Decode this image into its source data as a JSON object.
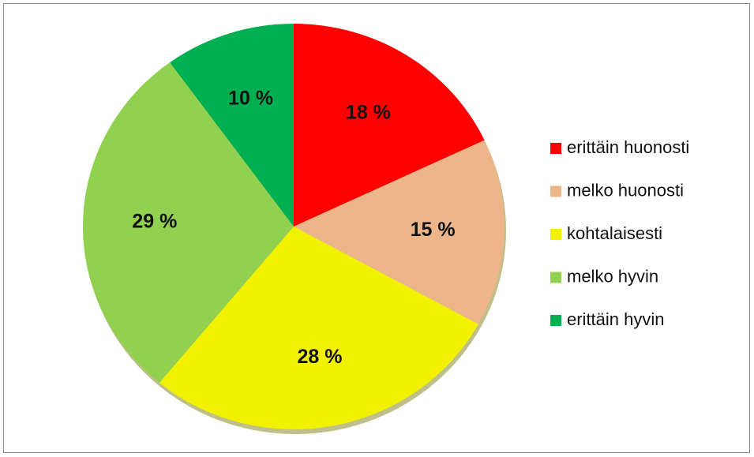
{
  "chart_data": {
    "type": "pie",
    "categories": [
      "erittäin huonosti",
      "melko huonosti",
      "kohtalaisesti",
      "melko hyvin",
      "erittäin hyvin"
    ],
    "values": [
      18,
      15,
      28,
      29,
      10
    ],
    "value_labels": [
      "18 %",
      "15 %",
      "28 %",
      "29 %",
      "10 %"
    ],
    "colors": [
      "#ff0000",
      "#edb68a",
      "#f2f200",
      "#92d050",
      "#00b050"
    ],
    "legend": "right"
  }
}
